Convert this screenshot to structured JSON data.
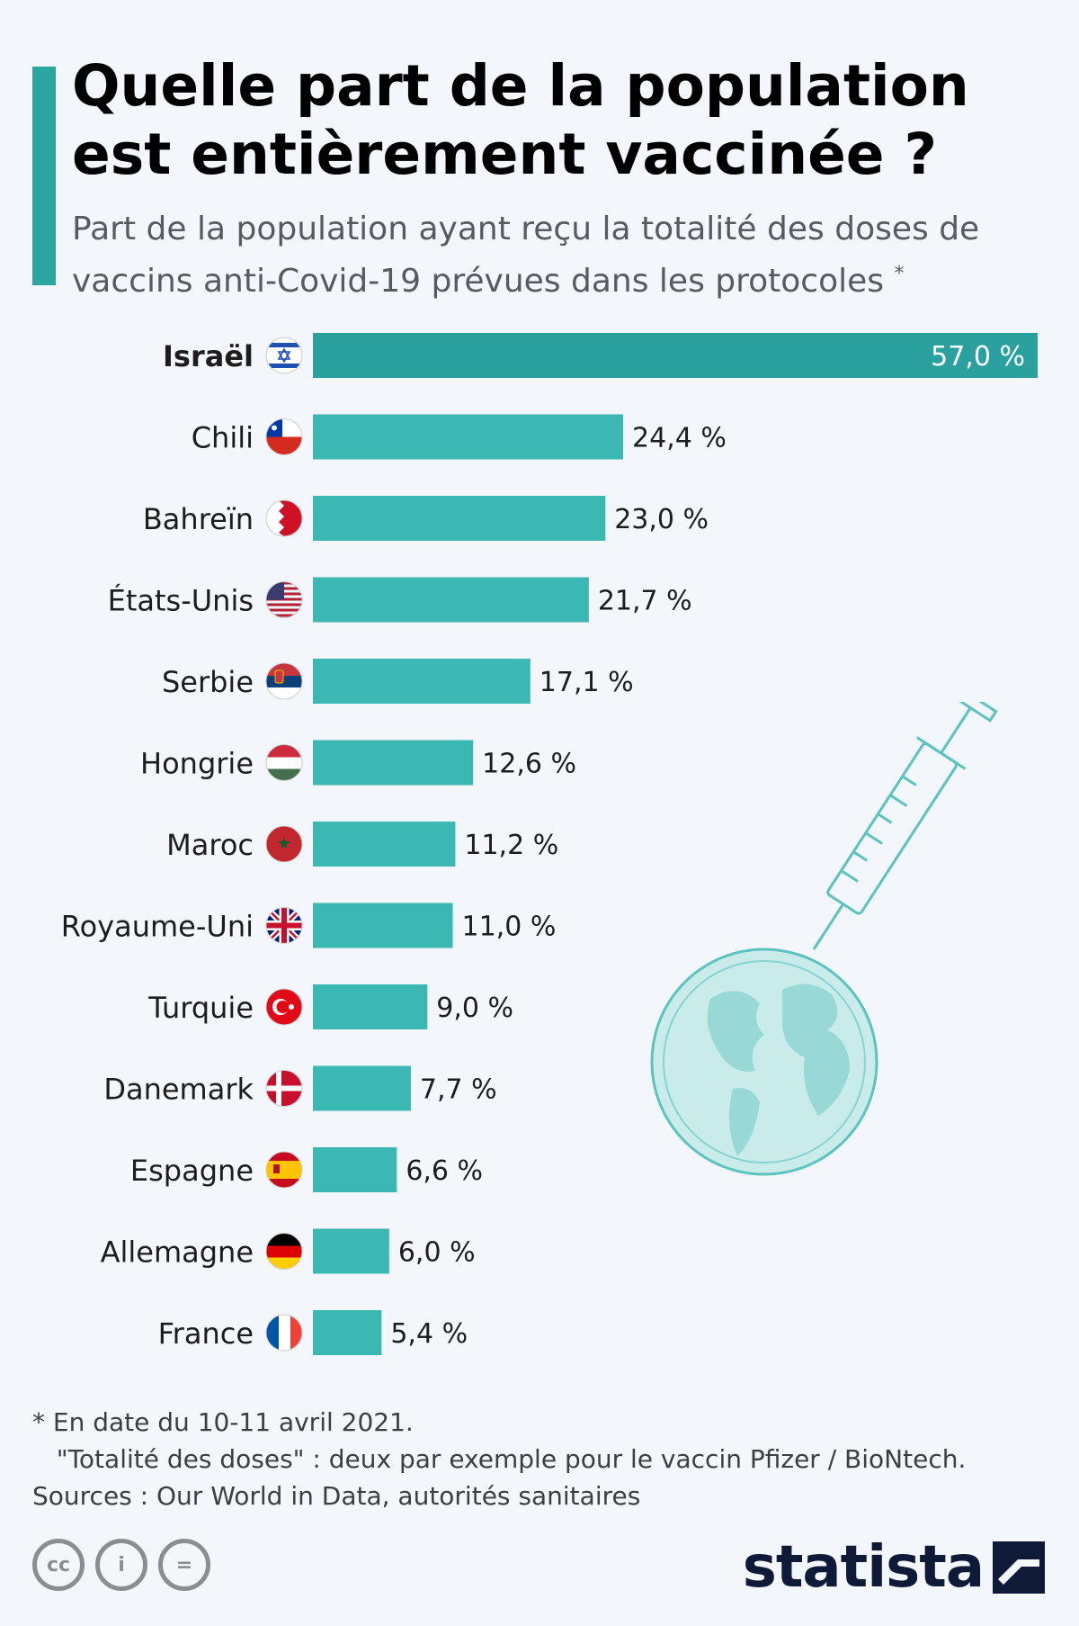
{
  "title": "Quelle part de la population est entièrement vaccinée ?",
  "subtitle": "Part de la population ayant reçu la totalité des doses de vaccins anti-Covid-19 prévues dans les protocoles",
  "subtitle_mark": "*",
  "colors": {
    "accent": "#2aa5a0",
    "bar": "#3bb7b4",
    "highlight_bar": "#2aa19e",
    "background": "#f3f6fa"
  },
  "chart_data": {
    "type": "bar",
    "orientation": "horizontal",
    "categories": [
      "Israël",
      "Chili",
      "Bahreïn",
      "États-Unis",
      "Serbie",
      "Hongrie",
      "Maroc",
      "Royaume-Uni",
      "Turquie",
      "Danemark",
      "Espagne",
      "Allemagne",
      "France"
    ],
    "values": [
      57.0,
      24.4,
      23.0,
      21.7,
      17.1,
      12.6,
      11.2,
      11.0,
      9.0,
      7.7,
      6.6,
      6.0,
      5.4
    ],
    "value_labels": [
      "57,0 %",
      "24,4 %",
      "23,0 %",
      "21,7 %",
      "17,1 %",
      "12,6 %",
      "11,2 %",
      "11,0 %",
      "9,0 %",
      "7,7 %",
      "6,6 %",
      "6,0 %",
      "5,4 %"
    ],
    "flags": [
      "israel-flag-icon",
      "chile-flag-icon",
      "bahrain-flag-icon",
      "usa-flag-icon",
      "serbia-flag-icon",
      "hungary-flag-icon",
      "morocco-flag-icon",
      "uk-flag-icon",
      "turkey-flag-icon",
      "denmark-flag-icon",
      "spain-flag-icon",
      "germany-flag-icon",
      "france-flag-icon"
    ],
    "highlight_index": 0,
    "xlim": [
      0,
      57
    ],
    "unit": "%",
    "grid": false,
    "legend": "none"
  },
  "footnote": {
    "line1": "* En date du 10-11 avril 2021.",
    "line2": "   \"Totalité des doses\" : deux par exemple pour le vaccin Pfizer / BioNtech.",
    "sources": "Sources : Our World in Data, autorités sanitaires"
  },
  "license_icons": [
    "cc-icon",
    "by-icon",
    "nd-icon"
  ],
  "license_labels": {
    "cc": "cc",
    "by": "i",
    "nd": "="
  },
  "brand": "statista"
}
